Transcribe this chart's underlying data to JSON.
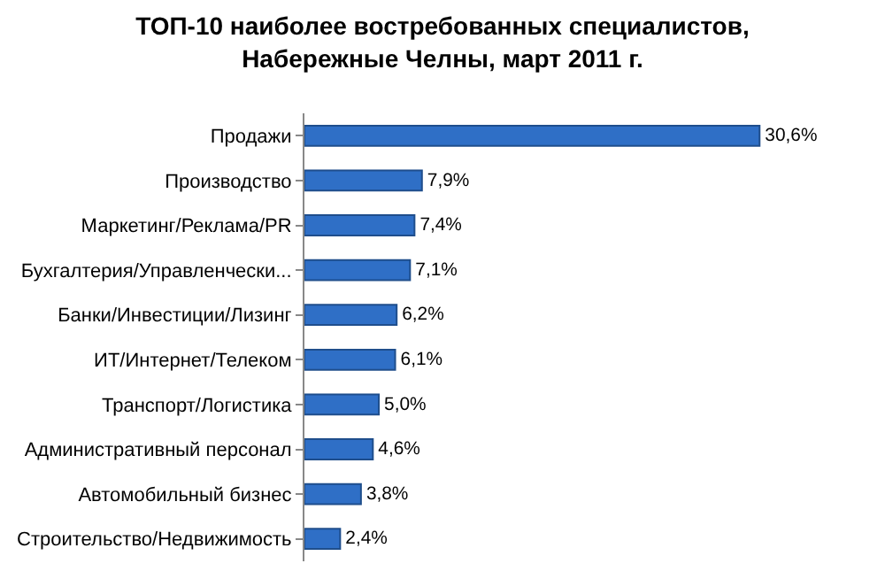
{
  "chart_data": {
    "type": "bar",
    "orientation": "horizontal",
    "title": "ТОП-10 наиболее востребованных специалистов,\nНабережные Челны, март 2011 г.",
    "categories": [
      "Продажи",
      "Производство",
      "Маркетинг/Реклама/PR",
      "Бухгалтерия/Управленчески...",
      "Банки/Инвестиции/Лизинг",
      "ИТ/Интернет/Телеком",
      "Транспорт/Логистика",
      "Административный персонал",
      "Автомобильный бизнес",
      "Строительство/Недвижимость"
    ],
    "values": [
      30.6,
      7.9,
      7.4,
      7.1,
      6.2,
      6.1,
      5.0,
      4.6,
      3.8,
      2.4
    ],
    "value_labels": [
      "30,6%",
      "7,9%",
      "7,4%",
      "7,1%",
      "6,2%",
      "6,1%",
      "5,0%",
      "4,6%",
      "3,8%",
      "2,4%"
    ],
    "color": "#2f6fc6"
  }
}
